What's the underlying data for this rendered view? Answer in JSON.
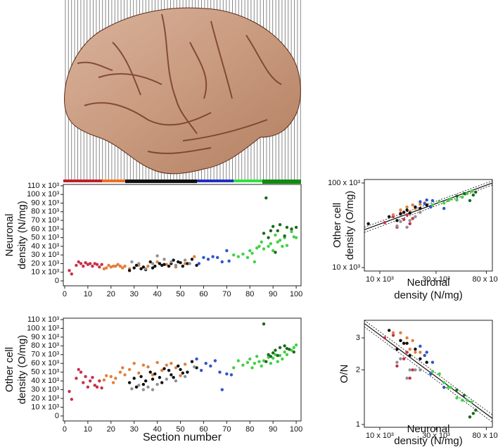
{
  "chart_data": [
    {
      "type": "scatter",
      "log_x": false,
      "log_y": false,
      "ylabel": [
        "Neuronal",
        "density (N/mg)"
      ],
      "xlim": [
        -0.6,
        102.1
      ],
      "ylim": [
        -5700,
        111600
      ],
      "xticks": [
        0,
        10,
        20,
        30,
        40,
        50,
        60,
        70,
        80,
        90,
        100
      ],
      "yticks": [
        0,
        {
          "value": 10000,
          "label": "10 x 10³"
        },
        {
          "value": 20000,
          "label": "20 x 10³"
        },
        {
          "value": 30000,
          "label": "30 x 10³"
        },
        {
          "value": 40000,
          "label": "40 x 10³"
        },
        {
          "value": 50000,
          "label": "50 x 10³"
        },
        {
          "value": 60000,
          "label": "60 x 10³"
        },
        {
          "value": 70000,
          "label": "70 x 10³"
        },
        {
          "value": 80000,
          "label": "80 x 10³"
        },
        {
          "value": 90000,
          "label": "90 x 10³"
        },
        {
          "value": 100000,
          "label": "100 x 10³"
        },
        {
          "value": 110000,
          "label": "110 x 10³"
        }
      ],
      "series": [
        {
          "color": "#c8304a",
          "x": [
            2,
            3,
            5,
            6,
            7,
            8,
            9,
            10,
            11,
            12,
            13,
            14,
            15,
            16
          ],
          "values": [
            12000,
            8000,
            18000,
            22000,
            20000,
            17000,
            21000,
            19000,
            20000,
            17000,
            20000,
            19000,
            16000,
            19000
          ]
        },
        {
          "color": "#e0803a",
          "x": [
            17,
            18,
            19,
            20,
            21,
            22,
            23,
            24,
            25,
            26,
            28,
            32,
            36,
            40,
            44,
            48,
            52,
            56
          ],
          "values": [
            14000,
            15000,
            18000,
            16000,
            17000,
            17000,
            19000,
            17000,
            15000,
            17000,
            14000,
            18000,
            17000,
            22000,
            19000,
            16000,
            20000,
            28000
          ]
        },
        {
          "color": "#111111",
          "x": [
            28,
            30,
            31,
            33,
            34,
            35,
            37,
            38,
            39,
            41,
            42,
            43,
            45,
            46,
            47,
            49,
            50,
            51,
            53,
            55,
            57
          ],
          "values": [
            12000,
            15000,
            18000,
            14000,
            16000,
            13000,
            22000,
            15000,
            17000,
            20000,
            18000,
            19000,
            17000,
            20000,
            24000,
            22000,
            21000,
            17000,
            20000,
            25000,
            18000
          ]
        },
        {
          "color": "#909090",
          "x": [
            29,
            32,
            35,
            38,
            40,
            43,
            46,
            48,
            52,
            54
          ],
          "values": [
            22000,
            20000,
            14000,
            20000,
            29000,
            25000,
            22000,
            18000,
            24000,
            20000
          ]
        },
        {
          "color": "#2f56c8",
          "x": [
            58,
            60,
            62,
            64,
            66,
            68,
            70,
            71
          ],
          "values": [
            20000,
            27000,
            25000,
            28000,
            27000,
            22000,
            35000,
            23000
          ]
        },
        {
          "color": "#44d048",
          "x": [
            73,
            75,
            77,
            79,
            80,
            81,
            82,
            83,
            84,
            85,
            86,
            88,
            89,
            90,
            91,
            92,
            93,
            94,
            95,
            96,
            98,
            99,
            100
          ],
          "values": [
            30000,
            28000,
            31000,
            27000,
            35000,
            32000,
            22000,
            38000,
            40000,
            45000,
            37000,
            40000,
            43000,
            35000,
            53000,
            45000,
            47000,
            40000,
            50000,
            41000,
            57000,
            51000,
            50000
          ]
        },
        {
          "color": "#1a6a1a",
          "x": [
            86,
            87,
            88,
            89,
            90,
            91,
            92,
            93,
            95,
            96,
            98,
            100
          ],
          "values": [
            55000,
            96000,
            50000,
            58000,
            63000,
            33000,
            58000,
            65000,
            52000,
            62000,
            60000,
            62000
          ]
        }
      ]
    },
    {
      "type": "scatter",
      "log_x": false,
      "log_y": false,
      "ylabel": [
        "Other cell",
        "density (O/mg)"
      ],
      "xlabel": [
        "Section number"
      ],
      "xlim": [
        -0.6,
        102.1
      ],
      "ylim": [
        -5700,
        111600
      ],
      "xticks": [
        0,
        10,
        20,
        30,
        40,
        50,
        60,
        70,
        80,
        90,
        100
      ],
      "yticks": [
        0,
        {
          "value": 10000,
          "label": "10 x 10³"
        },
        {
          "value": 20000,
          "label": "20 x 10³"
        },
        {
          "value": 30000,
          "label": "30 x 10³"
        },
        {
          "value": 40000,
          "label": "40 x 10³"
        },
        {
          "value": 50000,
          "label": "50 x 10³"
        },
        {
          "value": 60000,
          "label": "60 x 10³"
        },
        {
          "value": 70000,
          "label": "70 x 10³"
        },
        {
          "value": 80000,
          "label": "80 x 10³"
        },
        {
          "value": 90000,
          "label": "90 x 10³"
        },
        {
          "value": 100000,
          "label": "100 x 10³"
        },
        {
          "value": 110000,
          "label": "110 x 10³"
        }
      ],
      "series": [
        {
          "color": "#c8304a",
          "x": [
            2,
            3,
            5,
            6,
            7,
            8,
            9,
            10,
            11,
            12,
            13,
            14,
            15,
            16
          ],
          "values": [
            28000,
            19000,
            43000,
            53000,
            50000,
            38000,
            45000,
            33000,
            40000,
            44000,
            35000,
            33000,
            40000,
            32000
          ]
        },
        {
          "color": "#e0803a",
          "x": [
            17,
            18,
            20,
            21,
            22,
            24,
            25,
            26,
            28,
            30,
            32,
            34,
            36,
            38,
            40,
            42,
            44,
            46,
            48,
            50,
            52
          ],
          "values": [
            41000,
            46000,
            45000,
            38000,
            43000,
            50000,
            55000,
            47000,
            53000,
            60000,
            49000,
            58000,
            56000,
            47000,
            61000,
            52000,
            58000,
            60000,
            55000,
            46000,
            59000
          ]
        },
        {
          "color": "#111111",
          "x": [
            28,
            30,
            31,
            33,
            34,
            35,
            37,
            38,
            39,
            41,
            42,
            43,
            45,
            46,
            47,
            49,
            50,
            51,
            53,
            55,
            57
          ],
          "values": [
            38000,
            43000,
            33000,
            45000,
            36000,
            40000,
            50000,
            42000,
            48000,
            44000,
            38000,
            54000,
            52000,
            47000,
            44000,
            57000,
            53000,
            49000,
            50000,
            62000,
            55000
          ]
        },
        {
          "color": "#909090",
          "x": [
            29,
            32,
            34,
            36,
            38,
            40,
            44,
            48,
            52,
            56
          ],
          "values": [
            31000,
            35000,
            30000,
            33000,
            30000,
            36000,
            42000,
            40000,
            45000,
            56000
          ]
        },
        {
          "color": "#2f56c8",
          "x": [
            57,
            59,
            61,
            63,
            65,
            67,
            68,
            70,
            72
          ],
          "values": [
            65000,
            52000,
            60000,
            57000,
            63000,
            50000,
            30000,
            48000,
            47000
          ]
        },
        {
          "color": "#44d048",
          "x": [
            73,
            75,
            77,
            79,
            80,
            81,
            82,
            83,
            84,
            85,
            86,
            88,
            89,
            90,
            91,
            92,
            93,
            94,
            95,
            96,
            98,
            99,
            100
          ],
          "values": [
            55000,
            63000,
            58000,
            61000,
            65000,
            55000,
            60000,
            68000,
            62000,
            57000,
            63000,
            67000,
            60000,
            66000,
            70000,
            62000,
            69000,
            65000,
            73000,
            70000,
            75000,
            78000,
            81000
          ]
        },
        {
          "color": "#1a6a1a",
          "x": [
            86,
            87,
            88,
            89,
            90,
            91,
            92,
            93,
            95,
            96,
            97,
            99
          ],
          "values": [
            105000,
            62000,
            70000,
            68000,
            72000,
            75000,
            69000,
            78000,
            80000,
            77000,
            76000,
            73000
          ]
        }
      ]
    },
    {
      "type": "scatter",
      "log_x": true,
      "log_y": true,
      "ylabel": [
        "Other cell",
        "density (O/mg)"
      ],
      "xlabel": [
        "Neuronal",
        "density (N/mg)"
      ],
      "xlim": [
        7400,
        90000
      ],
      "ylim": [
        9100,
        110000
      ],
      "xticks": [
        {
          "value": 10000,
          "label": "10 x 10³"
        },
        {
          "value": 30000,
          "label": "30 x 10³"
        },
        {
          "value": 80000,
          "label": "80 x 10³"
        }
      ],
      "yticks": [
        {
          "value": 10000,
          "label": "10 x 10³"
        },
        {
          "value": 100000,
          "label": "100 x 10³"
        }
      ],
      "series": [
        {
          "color": "#c8304a",
          "x": [
            11000,
            13000,
            14000,
            15000,
            16000,
            17000,
            18000,
            19000
          ],
          "values": [
            34000,
            40000,
            30000,
            44000,
            37000,
            42000,
            33000,
            38000
          ]
        },
        {
          "color": "#e0803a",
          "x": [
            13000,
            15000,
            16000,
            17000,
            18000,
            19000,
            20000,
            22000,
            24000
          ],
          "values": [
            42000,
            48000,
            45000,
            52000,
            46000,
            55000,
            50000,
            56000,
            58000
          ]
        },
        {
          "color": "#111111",
          "x": [
            8000,
            12000,
            14000,
            15000,
            16000,
            17000,
            18000,
            20000,
            22000,
            25000
          ],
          "values": [
            33000,
            40000,
            36000,
            43000,
            45000,
            48000,
            44000,
            52000,
            50000,
            55000
          ]
        },
        {
          "color": "#909090",
          "x": [
            14000,
            15000,
            17000,
            18000,
            20000,
            22000
          ],
          "values": [
            31000,
            35000,
            30000,
            36000,
            40000,
            45000
          ]
        },
        {
          "color": "#2f56c8",
          "x": [
            22000,
            24000,
            25000,
            27000,
            28000,
            35000
          ],
          "values": [
            60000,
            57000,
            63000,
            52000,
            62000,
            50000
          ]
        },
        {
          "color": "#44d048",
          "x": [
            28000,
            32000,
            35000,
            38000,
            40000,
            45000,
            50000,
            55000,
            60000
          ],
          "values": [
            55000,
            60000,
            58000,
            62000,
            65000,
            63000,
            68000,
            75000,
            80000
          ]
        },
        {
          "color": "#1a6a1a",
          "x": [
            45000,
            52000,
            58000,
            62000,
            65000
          ],
          "values": [
            70000,
            75000,
            62000,
            72000,
            78000
          ]
        }
      ],
      "fits": [
        {
          "style": "solid",
          "x": [
            7400,
            90000
          ],
          "values": [
            28000,
            100000
          ]
        },
        {
          "style": "dashed",
          "x": [
            7400,
            90000
          ],
          "values": [
            30000,
            106000
          ]
        },
        {
          "style": "dashed",
          "x": [
            7400,
            90000
          ],
          "values": [
            26000,
            95000
          ]
        }
      ]
    },
    {
      "type": "scatter",
      "log_x": true,
      "log_y": true,
      "ylabel": [
        "O/N"
      ],
      "xlabel": [
        "Neuronal",
        "density (N/mg)"
      ],
      "xlim": [
        7400,
        90000
      ],
      "ylim": [
        0.965,
        3.75
      ],
      "xticks": [
        {
          "value": 10000,
          "label": "10 x 10³"
        },
        {
          "value": 30000,
          "label": "30 x 10³"
        },
        {
          "value": 80000,
          "label": "80 x 10³"
        }
      ],
      "yticks": [
        1,
        2,
        3
      ],
      "series": [
        {
          "color": "#c8304a",
          "x": [
            11000,
            13000,
            14000,
            15000,
            16000,
            17000,
            18000,
            19000
          ],
          "values": [
            3.0,
            3.1,
            2.1,
            2.9,
            2.3,
            2.5,
            1.8,
            2.0
          ]
        },
        {
          "color": "#e0803a",
          "x": [
            13000,
            15000,
            16000,
            17000,
            18000,
            19000,
            20000,
            22000,
            24000
          ],
          "values": [
            3.2,
            3.2,
            2.8,
            3.0,
            2.6,
            2.9,
            2.5,
            2.5,
            2.4
          ]
        },
        {
          "color": "#111111",
          "x": [
            12000,
            14000,
            15000,
            16000,
            17000,
            18000,
            20000,
            22000,
            25000
          ],
          "values": [
            3.3,
            2.6,
            2.9,
            2.8,
            2.8,
            2.4,
            2.6,
            2.3,
            2.2
          ]
        },
        {
          "color": "#909090",
          "x": [
            14000,
            15000,
            17000,
            18000,
            20000,
            22000
          ],
          "values": [
            2.2,
            2.3,
            1.8,
            2.0,
            2.0,
            2.0
          ]
        },
        {
          "color": "#2f56c8",
          "x": [
            22000,
            24000,
            25000,
            27000,
            28000,
            35000
          ],
          "values": [
            2.7,
            2.4,
            2.5,
            1.9,
            2.2,
            1.6
          ]
        },
        {
          "color": "#44d048",
          "x": [
            28000,
            32000,
            35000,
            38000,
            40000,
            45000,
            50000,
            55000,
            60000
          ],
          "values": [
            1.96,
            1.9,
            1.7,
            1.6,
            1.6,
            1.4,
            1.36,
            1.36,
            1.33
          ]
        },
        {
          "color": "#1a6a1a",
          "x": [
            45000,
            52000,
            58000,
            62000,
            65000
          ],
          "values": [
            1.55,
            1.45,
            1.1,
            1.15,
            1.2
          ]
        }
      ],
      "fits": [
        {
          "style": "solid",
          "x": [
            7400,
            90000
          ],
          "values": [
            3.6,
            1.08
          ]
        },
        {
          "style": "dashed",
          "x": [
            7400,
            90000
          ],
          "values": [
            3.75,
            1.13
          ]
        },
        {
          "style": "dashed",
          "x": [
            7400,
            90000
          ],
          "values": [
            3.45,
            1.03
          ]
        }
      ]
    }
  ]
}
